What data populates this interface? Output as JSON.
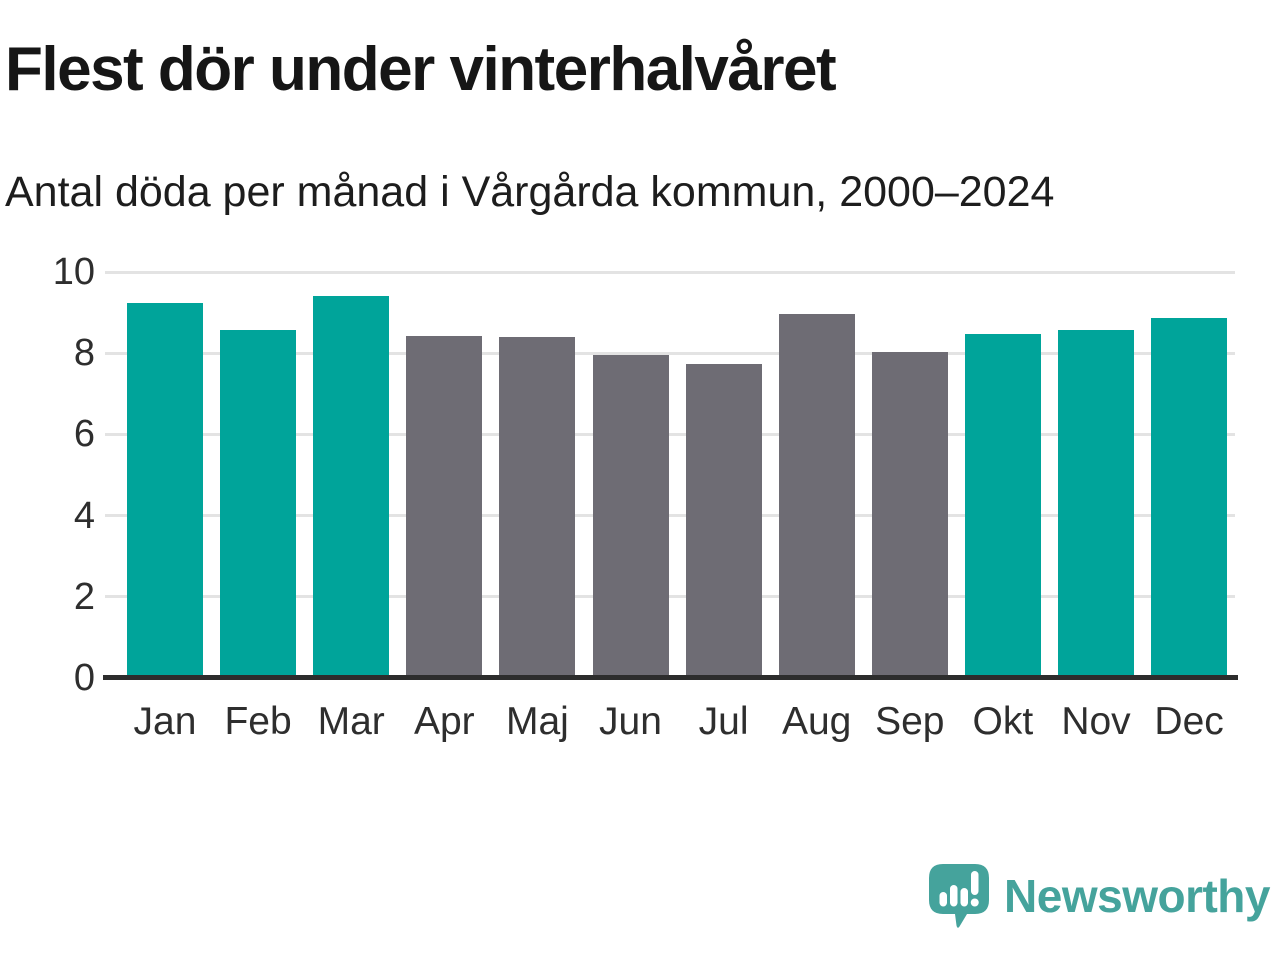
{
  "header": {
    "title": "Flest dör under vinterhalvåret",
    "subtitle": "Antal döda per månad i Vårgårda kommun, 2000–2024"
  },
  "chart_data": {
    "type": "bar",
    "title": "Flest dör under vinterhalvåret",
    "subtitle": "Antal döda per månad i Vårgårda kommun, 2000–2024",
    "categories": [
      "Jan",
      "Feb",
      "Mar",
      "Apr",
      "Maj",
      "Jun",
      "Jul",
      "Aug",
      "Sep",
      "Okt",
      "Nov",
      "Dec"
    ],
    "values": [
      9.24,
      8.56,
      9.4,
      8.42,
      8.39,
      7.95,
      7.74,
      8.97,
      8.02,
      8.47,
      8.56,
      8.87
    ],
    "groups": [
      "winter",
      "winter",
      "winter",
      "summer",
      "summer",
      "summer",
      "summer",
      "summer",
      "summer",
      "winter",
      "winter",
      "winter"
    ],
    "palette": {
      "winter": "#00a49a",
      "summer": "#6e6c74"
    },
    "xlabel": "",
    "ylabel": "",
    "ylim": [
      0,
      10
    ],
    "yticks": [
      0,
      2,
      4,
      6,
      8,
      10
    ],
    "grid": true,
    "legend": "none"
  },
  "footer": {
    "brand": "Newsworthy"
  },
  "colors": {
    "background": "#ffffff",
    "title_text": "#161616",
    "subtitle_text": "#1d1d1d",
    "tick_text": "#2e2e2e",
    "gridline": "#e3e3e3",
    "axis_line": "#2d2d2d",
    "winter_bar": "#00a49a",
    "summer_bar": "#6e6c74",
    "logo": "#45a39c",
    "logo_glyph": "#ffffff"
  }
}
